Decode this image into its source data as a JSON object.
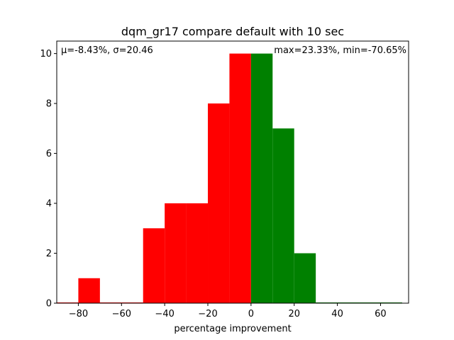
{
  "chart_data": {
    "type": "bar",
    "title": "dqm_gr17 compare default with 10 sec",
    "xlabel": "percentage improvement",
    "ylabel": "",
    "xlim": [
      -90,
      73
    ],
    "ylim": [
      0,
      10.5
    ],
    "xticks": [
      -80,
      -60,
      -40,
      -20,
      0,
      20,
      40,
      60
    ],
    "yticks": [
      0,
      2,
      4,
      6,
      8,
      10
    ],
    "grid": false,
    "bins": [
      {
        "x0": -90,
        "x1": -80,
        "value": 0,
        "color": "#ff0000"
      },
      {
        "x0": -80,
        "x1": -70,
        "value": 1,
        "color": "#ff0000"
      },
      {
        "x0": -70,
        "x1": -60,
        "value": 0,
        "color": "#ff0000"
      },
      {
        "x0": -60,
        "x1": -50,
        "value": 0,
        "color": "#ff0000"
      },
      {
        "x0": -50,
        "x1": -40,
        "value": 3,
        "color": "#ff0000"
      },
      {
        "x0": -40,
        "x1": -30,
        "value": 4,
        "color": "#ff0000"
      },
      {
        "x0": -30,
        "x1": -20,
        "value": 4,
        "color": "#ff0000"
      },
      {
        "x0": -20,
        "x1": -10,
        "value": 8,
        "color": "#ff0000"
      },
      {
        "x0": -10,
        "x1": 0,
        "value": 10,
        "color": "#ff0000"
      },
      {
        "x0": 0,
        "x1": 10,
        "value": 10,
        "color": "#008000"
      },
      {
        "x0": 10,
        "x1": 20,
        "value": 7,
        "color": "#008000"
      },
      {
        "x0": 20,
        "x1": 30,
        "value": 2,
        "color": "#008000"
      },
      {
        "x0": 30,
        "x1": 40,
        "value": 0,
        "color": "#008000"
      },
      {
        "x0": 40,
        "x1": 50,
        "value": 0,
        "color": "#008000"
      },
      {
        "x0": 50,
        "x1": 60,
        "value": 0,
        "color": "#008000"
      },
      {
        "x0": 60,
        "x1": 70,
        "value": 0,
        "color": "#008000"
      }
    ],
    "annotations": {
      "stats_left": "μ=-8.43%, σ=20.46",
      "stats_right": "max=23.33%, min=-70.65%"
    }
  }
}
